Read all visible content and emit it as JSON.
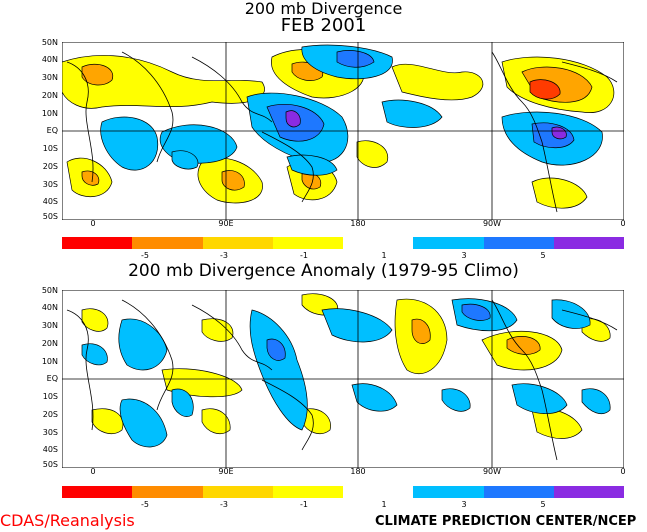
{
  "top": {
    "title_line1": "200 mb Divergence",
    "title_line2": "FEB 2001"
  },
  "bottom": {
    "title": "200 mb Divergence Anomaly (1979-95 Climo)"
  },
  "lat_labels": [
    "50N",
    "40N",
    "30N",
    "20N",
    "10N",
    "EQ",
    "10S",
    "20S",
    "30S",
    "40S",
    "50S"
  ],
  "lon_labels": [
    "0",
    "90E",
    "180",
    "90W",
    "0"
  ],
  "colorbar": {
    "colors": [
      "#ff0000",
      "#ff8c00",
      "#ffd700",
      "#ffff00",
      "#ffffff",
      "#00bfff",
      "#1e78ff",
      "#8a2be2"
    ],
    "labels": [
      "-5",
      "-3",
      "-1",
      "1",
      "3",
      "5"
    ]
  },
  "colors": {
    "land_line": "#000000",
    "positive_low": "#ffff00",
    "positive_mid": "#ffa500",
    "positive_high": "#ff3b00",
    "negative_low": "#00bfff",
    "negative_mid": "#1e78ff",
    "negative_high": "#8a2be2"
  },
  "footer": {
    "left": "CDAS/Reanalysis",
    "right": "CLIMATE PREDICTION CENTER/NCEP"
  }
}
